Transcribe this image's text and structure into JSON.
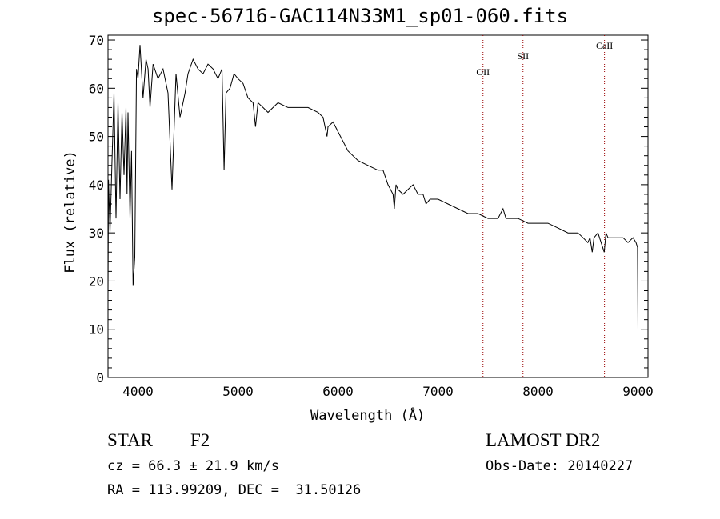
{
  "chart_data": {
    "type": "line",
    "title": "spec-56716-GAC114N33M1_sp01-060.fits",
    "xlabel": "Wavelength (Å)",
    "ylabel": "Flux (relative)",
    "xlim": [
      3700,
      9100
    ],
    "ylim": [
      0,
      71
    ],
    "xticks": [
      "4000",
      "5000",
      "6000",
      "7000",
      "8000",
      "9000"
    ],
    "yticks": [
      "0",
      "10",
      "20",
      "30",
      "40",
      "50",
      "60",
      "70"
    ],
    "grid": false,
    "series": [
      {
        "x": [
          3700,
          3705,
          3720,
          3740,
          3760,
          3780,
          3800,
          3820,
          3840,
          3860,
          3880,
          3890,
          3900,
          3920,
          3935,
          3950,
          3968,
          3985,
          4000,
          4020,
          4050,
          4080,
          4101,
          4120,
          4150,
          4200,
          4250,
          4300,
          4340,
          4380,
          4420,
          4470,
          4500,
          4550,
          4600,
          4650,
          4700,
          4750,
          4800,
          4840,
          4861,
          4880,
          4920,
          4960,
          5000,
          5050,
          5100,
          5150,
          5175,
          5200,
          5250,
          5300,
          5400,
          5500,
          5600,
          5700,
          5800,
          5850,
          5890,
          5900,
          5950,
          6000,
          6100,
          6200,
          6300,
          6400,
          6450,
          6500,
          6550,
          6563,
          6580,
          6600,
          6650,
          6700,
          6750,
          6800,
          6850,
          6880,
          6920,
          6950,
          7000,
          7100,
          7200,
          7300,
          7400,
          7500,
          7600,
          7650,
          7680,
          7700,
          7750,
          7800,
          7900,
          8000,
          8100,
          8200,
          8300,
          8400,
          8450,
          8498,
          8520,
          8542,
          8560,
          8600,
          8662,
          8680,
          8700,
          8750,
          8800,
          8850,
          8900,
          8950,
          8980,
          8995,
          9000
        ],
        "y": [
          17,
          41,
          30,
          45,
          59,
          33,
          57,
          37,
          55,
          42,
          56,
          38,
          55,
          33,
          47,
          19,
          25,
          64,
          62,
          69,
          58,
          66,
          64,
          56,
          65,
          62,
          64,
          59,
          39,
          63,
          54,
          59,
          63,
          66,
          64,
          63,
          65,
          64,
          62,
          64,
          43,
          59,
          60,
          63,
          62,
          61,
          58,
          57,
          52,
          57,
          56,
          55,
          57,
          56,
          56,
          56,
          55,
          54,
          50,
          52,
          53,
          51,
          47,
          45,
          44,
          43,
          43,
          40,
          38,
          35,
          40,
          39,
          38,
          39,
          40,
          38,
          38,
          36,
          37,
          37,
          37,
          36,
          35,
          34,
          34,
          33,
          33,
          35,
          33,
          33,
          33,
          33,
          32,
          32,
          32,
          31,
          30,
          30,
          29,
          28,
          29,
          26,
          29,
          30,
          26,
          30,
          29,
          29,
          29,
          29,
          28,
          29,
          28,
          27,
          10
        ]
      }
    ],
    "annotations": [
      {
        "label": "OII",
        "x": 7450
      },
      {
        "label": "SII",
        "x": 7850
      },
      {
        "label": "CaII",
        "x": 8665
      }
    ],
    "line_color": "#000000",
    "marker_color": "#990000"
  },
  "info": {
    "object_class": "STAR",
    "subclass": "F2",
    "survey": "LAMOST DR2",
    "cz": "cz = 66.3 ± 21.9 km/s",
    "obs_date": "Obs-Date: 20140227",
    "radec": "RA = 113.99209, DEC =  31.50126"
  }
}
